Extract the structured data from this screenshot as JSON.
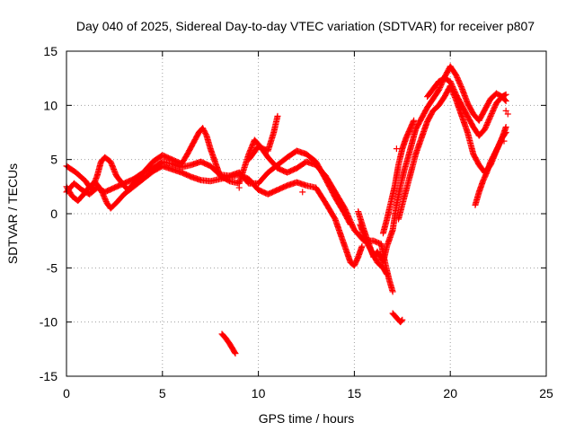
{
  "chart_data": {
    "type": "scatter",
    "title": "Day 040 of 2025, Sidereal Day-to-day VTEC variation (SDTVAR) for receiver p807",
    "xlabel": "GPS time / hours",
    "ylabel": "SDTVAR / TECUs",
    "xlim": [
      0,
      25
    ],
    "ylim": [
      -15,
      15
    ],
    "xticks": [
      0,
      5,
      10,
      15,
      20,
      25
    ],
    "yticks": [
      -15,
      -10,
      -5,
      0,
      5,
      10,
      15
    ],
    "grid": true,
    "marker": "plus",
    "color": "#ff0000",
    "series": [
      {
        "name": "s1",
        "points": [
          [
            0,
            2.5
          ],
          [
            0.3,
            1.6
          ],
          [
            0.6,
            1.2
          ],
          [
            0.9,
            1.8
          ],
          [
            1.2,
            2.5
          ],
          [
            1.5,
            2.9
          ],
          [
            1.8,
            2.2
          ],
          [
            2.1,
            1.0
          ],
          [
            2.3,
            0.5
          ],
          [
            2.6,
            1.0
          ],
          [
            3.0,
            1.8
          ],
          [
            3.5,
            2.5
          ],
          [
            4.0,
            3.2
          ],
          [
            4.5,
            3.9
          ],
          [
            5.0,
            4.4
          ],
          [
            5.5,
            4.1
          ],
          [
            6.0,
            3.8
          ],
          [
            6.5,
            3.4
          ],
          [
            7.0,
            3.1
          ],
          [
            7.5,
            3.0
          ],
          [
            8.0,
            3.2
          ],
          [
            8.5,
            3.4
          ],
          [
            9.0,
            3.6
          ],
          [
            9.5,
            3.2
          ],
          [
            10.0,
            2.2
          ],
          [
            10.5,
            1.8
          ],
          [
            11.0,
            2.2
          ],
          [
            11.5,
            2.6
          ],
          [
            12.0,
            2.9
          ],
          [
            12.5,
            2.6
          ],
          [
            13.0,
            2.4
          ],
          [
            13.5,
            1.0
          ],
          [
            14.0,
            -0.5
          ],
          [
            14.3,
            -2.0
          ],
          [
            14.6,
            -3.5
          ],
          [
            14.8,
            -4.5
          ],
          [
            15.0,
            -4.8
          ],
          [
            15.2,
            -4.0
          ],
          [
            15.4,
            -3.0
          ]
        ]
      },
      {
        "name": "s2",
        "points": [
          [
            0,
            4.4
          ],
          [
            0.5,
            3.8
          ],
          [
            1.0,
            3.0
          ],
          [
            1.3,
            2.2
          ],
          [
            1.6,
            3.5
          ],
          [
            1.8,
            4.8
          ],
          [
            2.0,
            5.2
          ],
          [
            2.3,
            4.8
          ],
          [
            2.6,
            3.5
          ],
          [
            2.9,
            2.8
          ],
          [
            3.2,
            2.2
          ],
          [
            3.5,
            2.8
          ],
          [
            4.0,
            3.8
          ],
          [
            4.5,
            4.8
          ],
          [
            5.0,
            5.4
          ],
          [
            5.5,
            5.0
          ],
          [
            6.0,
            4.6
          ],
          [
            6.3,
            5.5
          ],
          [
            6.6,
            6.5
          ],
          [
            6.9,
            7.5
          ],
          [
            7.1,
            7.9
          ],
          [
            7.3,
            7.2
          ],
          [
            7.5,
            6.0
          ],
          [
            7.8,
            4.5
          ],
          [
            8.0,
            3.5
          ],
          [
            8.5,
            3.0
          ],
          [
            9.0,
            2.8
          ],
          [
            9.5,
            5.5
          ],
          [
            9.8,
            6.8
          ],
          [
            10.1,
            6.2
          ],
          [
            10.5,
            5.2
          ],
          [
            11.0,
            4.2
          ],
          [
            11.5,
            3.8
          ],
          [
            12.0,
            4.2
          ],
          [
            12.5,
            4.8
          ],
          [
            13.0,
            4.5
          ],
          [
            13.5,
            3.5
          ],
          [
            14.0,
            2.0
          ],
          [
            14.5,
            0.5
          ],
          [
            15.0,
            -1.5
          ],
          [
            15.5,
            -2.5
          ],
          [
            16.0,
            -2.5
          ],
          [
            16.4,
            -2.8
          ],
          [
            16.6,
            -4.5
          ],
          [
            16.8,
            -6.0
          ],
          [
            17.0,
            -7.2
          ]
        ]
      },
      {
        "name": "s3",
        "points": [
          [
            0,
            2.0
          ],
          [
            0.4,
            2.8
          ],
          [
            0.8,
            2.2
          ],
          [
            1.2,
            1.8
          ],
          [
            1.6,
            2.4
          ],
          [
            2.0,
            2.0
          ],
          [
            2.5,
            2.4
          ],
          [
            3.0,
            2.8
          ],
          [
            3.5,
            3.2
          ],
          [
            4.0,
            3.8
          ],
          [
            4.5,
            4.2
          ],
          [
            5.0,
            4.8
          ],
          [
            5.5,
            4.6
          ],
          [
            6.0,
            4.3
          ],
          [
            6.5,
            4.5
          ],
          [
            7.0,
            4.8
          ],
          [
            7.5,
            4.4
          ],
          [
            8.0,
            3.6
          ],
          [
            8.5,
            3.5
          ],
          [
            9.0,
            3.8
          ],
          [
            9.5,
            2.8
          ],
          [
            10.0,
            2.8
          ],
          [
            10.5,
            3.8
          ],
          [
            11.0,
            4.5
          ],
          [
            11.5,
            5.2
          ],
          [
            12.0,
            5.8
          ],
          [
            12.5,
            5.5
          ],
          [
            13.0,
            4.8
          ],
          [
            13.5,
            3.2
          ],
          [
            14.0,
            1.5
          ],
          [
            14.5,
            0.0
          ],
          [
            14.8,
            -1.0
          ]
        ]
      },
      {
        "name": "s4",
        "points": [
          [
            15.2,
            0.2
          ],
          [
            15.5,
            -1.5
          ],
          [
            15.8,
            -3.0
          ],
          [
            16.0,
            -4.0
          ],
          [
            16.2,
            -3.5
          ],
          [
            16.5,
            -4.5
          ],
          [
            16.7,
            -3.0
          ],
          [
            17.0,
            -1.5
          ],
          [
            17.2,
            0.8
          ],
          [
            17.4,
            2.5
          ],
          [
            17.6,
            4.0
          ],
          [
            17.8,
            5.2
          ],
          [
            18.0,
            6.5
          ],
          [
            18.2,
            7.8
          ],
          [
            18.5,
            8.8
          ],
          [
            18.8,
            9.8
          ],
          [
            19.1,
            10.6
          ],
          [
            19.4,
            11.4
          ],
          [
            19.7,
            12.6
          ],
          [
            20.0,
            13.6
          ],
          [
            20.3,
            12.8
          ],
          [
            20.6,
            11.6
          ],
          [
            20.9,
            10.2
          ],
          [
            21.2,
            9.2
          ],
          [
            21.5,
            8.6
          ],
          [
            21.8,
            9.6
          ],
          [
            22.1,
            10.6
          ],
          [
            22.4,
            11.1
          ],
          [
            22.7,
            10.8
          ],
          [
            22.9,
            10.4
          ]
        ]
      },
      {
        "name": "s5",
        "points": [
          [
            17.3,
            -0.5
          ],
          [
            17.6,
            1.5
          ],
          [
            17.9,
            3.5
          ],
          [
            18.2,
            5.5
          ],
          [
            18.5,
            7.0
          ],
          [
            18.8,
            8.5
          ],
          [
            19.1,
            9.5
          ],
          [
            19.4,
            10.0
          ],
          [
            19.7,
            10.8
          ],
          [
            20.0,
            11.8
          ],
          [
            20.3,
            10.5
          ],
          [
            20.6,
            9.0
          ],
          [
            20.9,
            7.5
          ],
          [
            21.2,
            5.5
          ],
          [
            21.5,
            4.5
          ],
          [
            21.8,
            3.8
          ],
          [
            22.1,
            4.5
          ],
          [
            22.4,
            5.8
          ],
          [
            22.7,
            7.0
          ],
          [
            22.9,
            8.0
          ]
        ]
      },
      {
        "name": "s6",
        "points": [
          [
            18.8,
            10.8
          ],
          [
            19.1,
            11.5
          ],
          [
            19.4,
            12.2
          ],
          [
            19.7,
            12.5
          ],
          [
            20.0,
            12.2
          ],
          [
            20.3,
            11.0
          ],
          [
            20.6,
            10.0
          ],
          [
            20.9,
            9.0
          ],
          [
            21.2,
            8.0
          ],
          [
            21.5,
            7.2
          ],
          [
            21.8,
            7.8
          ],
          [
            22.1,
            9.0
          ],
          [
            22.4,
            10.2
          ],
          [
            22.7,
            10.8
          ],
          [
            22.9,
            11.0
          ]
        ]
      },
      {
        "name": "s7",
        "points": [
          [
            21.3,
            0.8
          ],
          [
            21.5,
            2.0
          ],
          [
            21.7,
            3.0
          ],
          [
            21.9,
            3.8
          ],
          [
            22.1,
            4.8
          ],
          [
            22.3,
            5.5
          ],
          [
            22.5,
            6.2
          ],
          [
            22.7,
            7.0
          ],
          [
            22.9,
            7.5
          ]
        ]
      },
      {
        "name": "s8",
        "points": [
          [
            16.5,
            -1.8
          ],
          [
            16.7,
            -0.5
          ],
          [
            16.9,
            1.0
          ],
          [
            17.1,
            2.5
          ],
          [
            17.3,
            4.5
          ],
          [
            17.5,
            6.0
          ],
          [
            17.7,
            7.0
          ],
          [
            17.9,
            7.8
          ],
          [
            18.1,
            8.6
          ]
        ]
      },
      {
        "name": "s9",
        "points": [
          [
            9.5,
            5.0
          ],
          [
            10.0,
            6.2
          ],
          [
            10.5,
            5.8
          ],
          [
            10.8,
            7.5
          ],
          [
            11.0,
            9.0
          ]
        ]
      },
      {
        "name": "s10",
        "points": [
          [
            8.1,
            -11.1
          ],
          [
            8.3,
            -11.5
          ],
          [
            8.5,
            -12.0
          ],
          [
            8.7,
            -12.6
          ],
          [
            8.8,
            -12.9
          ]
        ]
      },
      {
        "name": "s11",
        "points": [
          [
            17.0,
            -9.2
          ],
          [
            17.2,
            -9.6
          ],
          [
            17.4,
            -10.0
          ],
          [
            17.5,
            -9.8
          ]
        ]
      },
      {
        "name": "s12",
        "points": [
          [
            15.3,
            -1.0
          ],
          [
            15.6,
            -2.5
          ],
          [
            15.9,
            -3.5
          ],
          [
            16.2,
            -4.5
          ],
          [
            16.5,
            -5.0
          ],
          [
            16.7,
            -5.6
          ]
        ]
      }
    ],
    "isolated_points": [
      [
        22.8,
        6.7
      ],
      [
        23.0,
        9.2
      ],
      [
        16.8,
        0.0
      ],
      [
        9.0,
        2.4
      ],
      [
        12.3,
        2.0
      ],
      [
        17.2,
        6.0
      ],
      [
        18.0,
        6.5
      ],
      [
        22.9,
        9.5
      ]
    ]
  }
}
